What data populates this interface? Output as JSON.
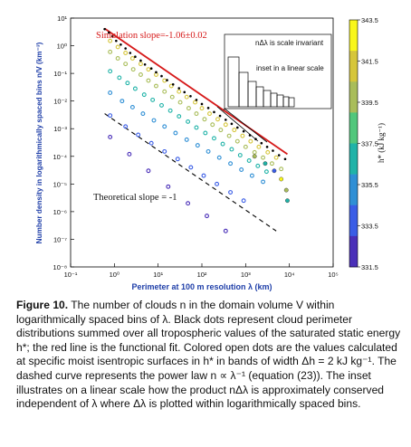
{
  "chart_data": {
    "type": "scatter",
    "xlabel": "Perimeter at 100 m resolution λ (km)",
    "ylabel": "Number density in logarithmically spaced bins n/V (km⁻³)",
    "x_scale": "log",
    "y_scale": "log",
    "xlim": [
      0.1,
      100000
    ],
    "ylim": [
      1e-08,
      10
    ],
    "x_ticks": [
      "10⁻¹",
      "10⁰",
      "10¹",
      "10²",
      "10³",
      "10⁴",
      "10⁵"
    ],
    "y_ticks": [
      "10¹",
      "10⁰",
      "10⁻¹",
      "10⁻²",
      "10⁻³",
      "10⁻⁴",
      "10⁻⁵",
      "10⁻⁶",
      "10⁻⁷",
      "10⁻⁸"
    ],
    "colorbar": {
      "label": "h* (kJ kg⁻¹)",
      "ticks": [
        "343.5",
        "341.5",
        "339.5",
        "337.5",
        "335.5",
        "333.5",
        "331.5"
      ],
      "min": 331.5,
      "max": 343.5,
      "colors": [
        "#f9f71a",
        "#d6c63a",
        "#a9bd5a",
        "#51c77c",
        "#20b3a8",
        "#2f8fd5",
        "#3a5de6",
        "#4a2fb8"
      ]
    },
    "annotations": {
      "simulation_slope": "Simulation slope=-1.06±0.02",
      "theoretical_slope": "Theoretical slope = -1",
      "inset_title": "nΔλ is scale invariant",
      "inset_subtitle": "inset in a linear scale"
    },
    "series": [
      {
        "kind": "black-dots",
        "points": [
          [
            0.6,
            4.0
          ],
          [
            0.75,
            3.0
          ],
          [
            0.9,
            2.2
          ],
          [
            1.1,
            1.5
          ],
          [
            1.4,
            1.1
          ],
          [
            1.8,
            0.8
          ],
          [
            2.3,
            0.55
          ],
          [
            3,
            0.4
          ],
          [
            4,
            0.29
          ],
          [
            5,
            0.21
          ],
          [
            7,
            0.15
          ],
          [
            9,
            0.11
          ],
          [
            12,
            0.08
          ],
          [
            16,
            0.057
          ],
          [
            22,
            0.04
          ],
          [
            30,
            0.029
          ],
          [
            40,
            0.021
          ],
          [
            55,
            0.015
          ],
          [
            75,
            0.011
          ],
          [
            100,
            0.0078
          ],
          [
            140,
            0.0056
          ],
          [
            190,
            0.004
          ],
          [
            260,
            0.0029
          ],
          [
            350,
            0.0021
          ],
          [
            480,
            0.0015
          ],
          [
            650,
            0.0011
          ],
          [
            900,
            0.0008
          ],
          [
            1250,
            0.00058
          ],
          [
            1700,
            0.00042
          ],
          [
            2300,
            0.0003
          ],
          [
            3100,
            0.00022
          ],
          [
            4200,
            0.00016
          ],
          [
            5800,
            0.00011
          ],
          [
            8000,
            8e-05
          ]
        ]
      },
      {
        "kind": "fit-line",
        "points": [
          [
            0.6,
            4.2
          ],
          [
            9000,
            0.00012
          ]
        ]
      },
      {
        "kind": "theoretical-line",
        "points": [
          [
            0.6,
            0.0035
          ],
          [
            5000,
            2e-07
          ]
        ]
      },
      {
        "kind": "colored-open-dots",
        "h_star": 341.5,
        "points": [
          [
            0.8,
            1.5
          ],
          [
            1.2,
            0.9
          ],
          [
            1.8,
            0.55
          ],
          [
            2.6,
            0.35
          ],
          [
            4,
            0.22
          ],
          [
            6,
            0.14
          ],
          [
            9,
            0.09
          ],
          [
            14,
            0.055
          ],
          [
            20,
            0.035
          ],
          [
            30,
            0.022
          ],
          [
            45,
            0.014
          ],
          [
            70,
            0.009
          ],
          [
            100,
            0.0055
          ],
          [
            150,
            0.0035
          ],
          [
            230,
            0.0022
          ],
          [
            350,
            0.0014
          ],
          [
            550,
            0.0009
          ],
          [
            850,
            0.00055
          ],
          [
            1300,
            0.00035
          ],
          [
            2000,
            0.00022
          ],
          [
            3200,
            0.00014
          ],
          [
            5000,
            9e-05
          ]
        ]
      },
      {
        "kind": "colored-open-dots",
        "h_star": 339.5,
        "points": [
          [
            0.8,
            0.6
          ],
          [
            1.2,
            0.35
          ],
          [
            1.8,
            0.22
          ],
          [
            2.7,
            0.14
          ],
          [
            4,
            0.09
          ],
          [
            6,
            0.055
          ],
          [
            9,
            0.035
          ],
          [
            14,
            0.022
          ],
          [
            21,
            0.014
          ],
          [
            32,
            0.009
          ],
          [
            50,
            0.0055
          ],
          [
            75,
            0.0035
          ],
          [
            115,
            0.0022
          ],
          [
            175,
            0.0014
          ],
          [
            270,
            0.0009
          ],
          [
            420,
            0.00055
          ],
          [
            650,
            0.00035
          ],
          [
            1000,
            0.00022
          ],
          [
            1600,
            0.00014
          ],
          [
            2500,
            9e-05
          ],
          [
            4000,
            5.5e-05
          ],
          [
            6500,
            3.5e-05
          ]
        ]
      },
      {
        "kind": "colored-open-dots",
        "h_star": 337.5,
        "points": [
          [
            0.8,
            0.12
          ],
          [
            1.3,
            0.07
          ],
          [
            2,
            0.045
          ],
          [
            3,
            0.028
          ],
          [
            4.8,
            0.017
          ],
          [
            7.5,
            0.011
          ],
          [
            12,
            0.007
          ],
          [
            19,
            0.0045
          ],
          [
            30,
            0.0028
          ],
          [
            48,
            0.0018
          ],
          [
            75,
            0.0011
          ],
          [
            120,
            0.0007
          ],
          [
            190,
            0.00045
          ],
          [
            300,
            0.00028
          ],
          [
            480,
            0.00018
          ],
          [
            750,
            0.00011
          ],
          [
            1200,
            7e-05
          ],
          [
            1900,
            4.5e-05
          ],
          [
            3000,
            2.8e-05
          ]
        ]
      },
      {
        "kind": "colored-open-dots",
        "h_star": 335.5,
        "points": [
          [
            0.8,
            0.02
          ],
          [
            1.5,
            0.01
          ],
          [
            2.6,
            0.006
          ],
          [
            4.5,
            0.0035
          ],
          [
            8,
            0.002
          ],
          [
            14,
            0.0012
          ],
          [
            25,
            0.0007
          ],
          [
            45,
            0.0004
          ],
          [
            80,
            0.00025
          ],
          [
            140,
            0.00015
          ],
          [
            250,
            9e-05
          ],
          [
            450,
            5.5e-05
          ],
          [
            800,
            3.3e-05
          ],
          [
            1400,
            2e-05
          ],
          [
            2500,
            1.2e-05
          ]
        ]
      },
      {
        "kind": "colored-open-dots",
        "h_star": 333.5,
        "points": [
          [
            0.8,
            0.003
          ],
          [
            1.8,
            0.0012
          ],
          [
            3.5,
            0.0006
          ],
          [
            7,
            0.0003
          ],
          [
            14,
            0.00015
          ],
          [
            28,
            8e-05
          ],
          [
            56,
            4e-05
          ],
          [
            110,
            2e-05
          ],
          [
            220,
            1e-05
          ],
          [
            450,
            5e-06
          ],
          [
            900,
            2.5e-06
          ]
        ]
      },
      {
        "kind": "colored-open-dots",
        "h_star": 331.5,
        "points": [
          [
            0.8,
            0.0005
          ],
          [
            2.2,
            0.00012
          ],
          [
            6,
            3e-05
          ],
          [
            17,
            8e-06
          ],
          [
            48,
            2e-06
          ],
          [
            130,
            7e-07
          ],
          [
            350,
            2e-07
          ]
        ]
      },
      {
        "kind": "scattered-large",
        "points": [
          [
            1600,
            0.0001
          ],
          [
            2800,
            5.5e-05
          ],
          [
            4500,
            3e-05
          ],
          [
            6500,
            1.5e-05
          ],
          [
            8500,
            6e-06
          ],
          [
            9000,
            2.5e-06
          ]
        ]
      }
    ]
  },
  "caption": {
    "label": "Figure 10.",
    "text": " The number of clouds n in the domain volume V within logarithmically spaced bins of λ. Black dots represent cloud perimeter distributions summed over all tropospheric values of the saturated static energy h*; the red line is the functional fit. Colored open dots are the values calculated at specific moist isentropic surfaces in h* in bands of width Δh = 2 kJ kg⁻¹. The dashed curve represents the power law n ∝ λ⁻¹ (equation (23)). The inset illustrates on a linear scale how the product nΔλ is approximately conserved independent of λ where Δλ is plotted within logarithmically spaced bins."
  }
}
